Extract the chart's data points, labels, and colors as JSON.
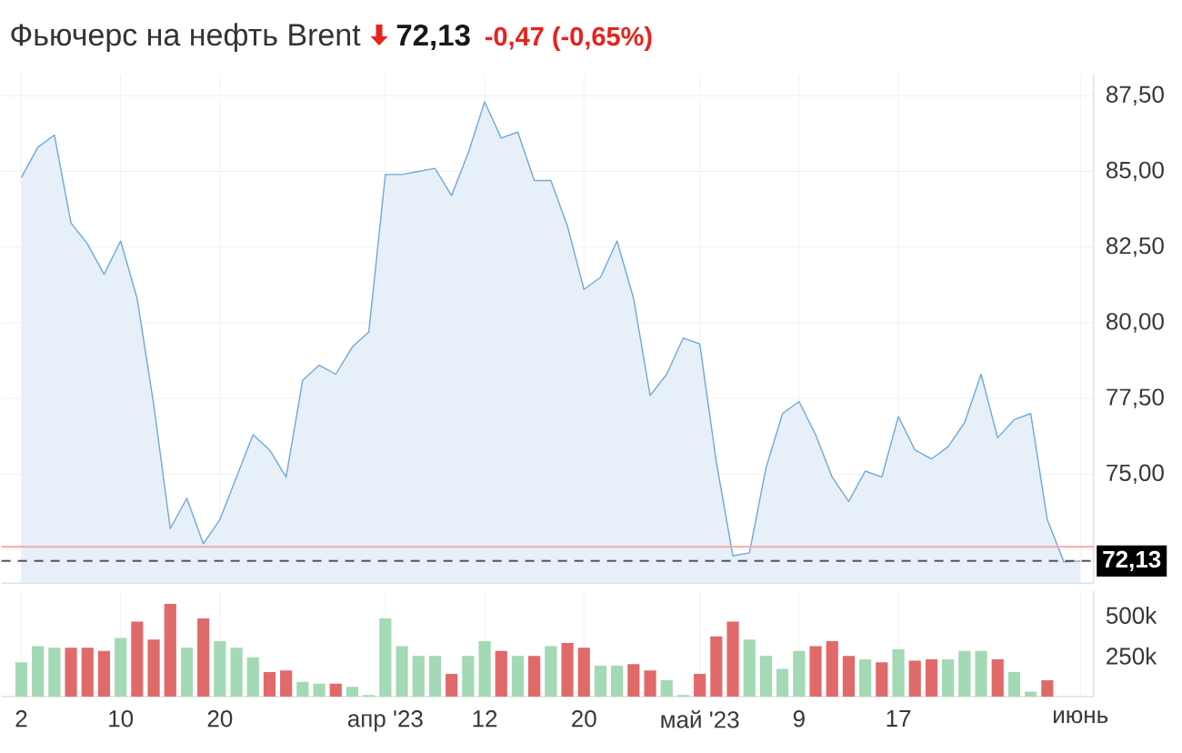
{
  "chart_data": [
    {
      "type": "area",
      "title": "Фьючерс на нефть Brent",
      "annotations": [
        "72,13",
        "-0,47 (-0,65%)"
      ],
      "categories": [
        null,
        null,
        null,
        null,
        null,
        null,
        null,
        null,
        null,
        null,
        null,
        null,
        null,
        null,
        null,
        null,
        null,
        null,
        null,
        null,
        null,
        null,
        null,
        null,
        null,
        null,
        null,
        null,
        null,
        null,
        null,
        null,
        null,
        null,
        null,
        null,
        null,
        null,
        null,
        null,
        null,
        null,
        null,
        null,
        null,
        null,
        null,
        null,
        null,
        null,
        null,
        null,
        null,
        null,
        null,
        null,
        null,
        null,
        null,
        null,
        null,
        null,
        null,
        null,
        null
      ],
      "values": [
        84.8,
        85.8,
        86.2,
        83.3,
        82.6,
        81.6,
        82.7,
        80.8,
        77.3,
        73.2,
        74.2,
        72.7,
        73.5,
        74.9,
        76.3,
        75.8,
        74.9,
        78.1,
        78.6,
        78.3,
        79.2,
        79.7,
        84.9,
        84.9,
        85.0,
        85.1,
        84.2,
        85.6,
        87.3,
        86.1,
        86.3,
        84.7,
        84.7,
        83.2,
        81.1,
        81.5,
        82.7,
        80.8,
        77.6,
        78.3,
        79.5,
        79.3,
        75.4,
        72.3,
        72.4,
        75.2,
        77.0,
        77.4,
        76.3,
        74.9,
        74.1,
        75.1,
        74.9,
        76.9,
        75.8,
        75.5,
        75.9,
        76.7,
        78.3,
        76.2,
        76.8,
        77.0,
        73.5,
        72.1,
        72.13
      ],
      "color": "#6fa8dc",
      "ylim": [
        71.4,
        88.2
      ],
      "yticks": [
        {
          "value": 72.5,
          "label": null
        },
        {
          "value": 75,
          "label": "75,00"
        },
        {
          "value": 77.5,
          "label": "77,50"
        },
        {
          "value": 80,
          "label": "80,00"
        },
        {
          "value": 82.5,
          "label": "82,50"
        },
        {
          "value": 85,
          "label": "85,00"
        },
        {
          "value": 87.5,
          "label": "87,50"
        }
      ],
      "grid": true,
      "ref_lines": [
        {
          "axis": "y",
          "value": 72.6,
          "color": "#f2a9a9"
        },
        {
          "axis": "y",
          "value": 72.13,
          "label": "72,13",
          "color": "#555555",
          "line_style": "dashed"
        }
      ]
    },
    {
      "type": "bar",
      "categories": [
        "2",
        null,
        null,
        null,
        null,
        null,
        "10",
        null,
        null,
        null,
        null,
        null,
        "20",
        null,
        null,
        null,
        null,
        null,
        null,
        null,
        null,
        null,
        "апр '23",
        null,
        null,
        null,
        null,
        null,
        "12",
        null,
        null,
        null,
        null,
        null,
        "20",
        null,
        null,
        null,
        null,
        null,
        null,
        "май '23",
        null,
        null,
        null,
        null,
        null,
        "9",
        null,
        null,
        null,
        null,
        null,
        "17",
        null,
        null,
        null,
        null,
        null,
        null,
        null,
        null,
        null,
        null,
        "июнь"
      ],
      "values": [
        210000,
        310000,
        300000,
        300000,
        300000,
        280000,
        360000,
        460000,
        350000,
        570000,
        300000,
        480000,
        340000,
        300000,
        240000,
        150000,
        160000,
        90000,
        80000,
        80000,
        60000,
        10000,
        480000,
        310000,
        250000,
        250000,
        140000,
        250000,
        340000,
        280000,
        250000,
        250000,
        310000,
        330000,
        300000,
        190000,
        190000,
        200000,
        160000,
        100000,
        10000,
        140000,
        370000,
        460000,
        350000,
        250000,
        170000,
        280000,
        310000,
        340000,
        250000,
        230000,
        210000,
        290000,
        220000,
        230000,
        230000,
        280000,
        280000,
        230000,
        150000,
        30000,
        100000,
        null,
        null
      ],
      "colors": [
        "#a3d9b4",
        "#a3d9b4",
        "#a3d9b4",
        "#e06a6a",
        "#e06a6a",
        "#e06a6a",
        "#a3d9b4",
        "#e06a6a",
        "#e06a6a",
        "#e06a6a",
        "#a3d9b4",
        "#e06a6a",
        "#a3d9b4",
        "#a3d9b4",
        "#a3d9b4",
        "#e06a6a",
        "#e06a6a",
        "#a3d9b4",
        "#a3d9b4",
        "#e06a6a",
        "#a3d9b4",
        "#a3d9b4",
        "#a3d9b4",
        "#a3d9b4",
        "#a3d9b4",
        "#a3d9b4",
        "#e06a6a",
        "#a3d9b4",
        "#a3d9b4",
        "#e06a6a",
        "#a3d9b4",
        "#e06a6a",
        "#a3d9b4",
        "#e06a6a",
        "#e06a6a",
        "#a3d9b4",
        "#a3d9b4",
        "#e06a6a",
        "#e06a6a",
        "#a3d9b4",
        "#a3d9b4",
        "#e06a6a",
        "#e06a6a",
        "#e06a6a",
        "#a3d9b4",
        "#a3d9b4",
        "#a3d9b4",
        "#a3d9b4",
        "#e06a6a",
        "#e06a6a",
        "#e06a6a",
        "#a3d9b4",
        "#e06a6a",
        "#a3d9b4",
        "#e06a6a",
        "#e06a6a",
        "#a3d9b4",
        "#a3d9b4",
        "#a3d9b4",
        "#e06a6a",
        "#a3d9b4",
        "#a3d9b4",
        "#e06a6a",
        null,
        null
      ],
      "ylim": [
        0,
        650000
      ],
      "yticks": [
        {
          "value": 250000,
          "label": "250k"
        },
        {
          "value": 500000,
          "label": "500k"
        }
      ],
      "grid": "x"
    }
  ]
}
